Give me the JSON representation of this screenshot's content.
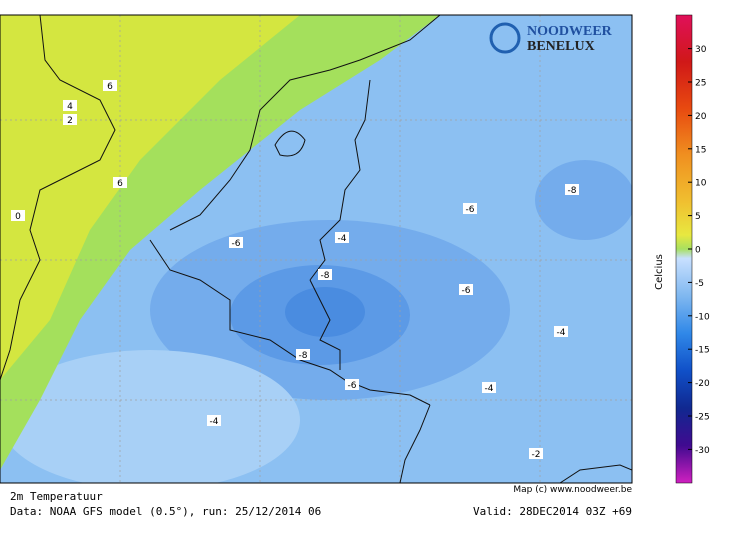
{
  "map": {
    "logo": [
      "NOODWEER",
      "BENELUX"
    ],
    "copyright": "Map (c) www.noodweer.be",
    "contour_labels": [
      "6",
      "4",
      "2",
      "6",
      "0",
      "-6",
      "-4",
      "-8",
      "-6",
      "-8",
      "-6",
      "-4",
      "-8",
      "-6",
      "-4",
      "-4",
      "-2"
    ]
  },
  "footer": {
    "title": "2m Temperatuur",
    "source": "Data: NOAA GFS model (0.5°), run: 25/12/2014 06",
    "valid": "Valid: 28DEC2014 03Z +69"
  },
  "colorbar": {
    "label": "Celcius",
    "ticks": [
      30,
      25,
      20,
      15,
      10,
      5,
      0,
      -5,
      -10,
      -15,
      -20,
      -25,
      -30
    ]
  }
}
